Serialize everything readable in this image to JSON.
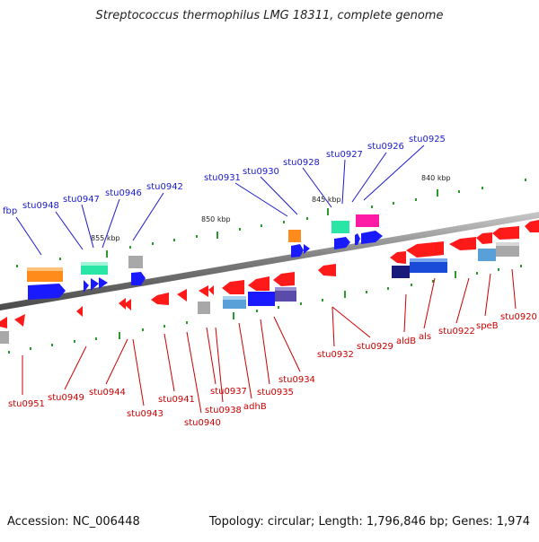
{
  "title": "Streptococcus thermophilus LMG 18311, complete genome",
  "footer": {
    "accession": "Accession: NC_006448",
    "summary": "Topology: circular; Length: 1,796,846 bp; Genes: 1,974"
  },
  "ticks": [
    "840 kbp",
    "845 kbp",
    "850 kbp",
    "855 kbp"
  ],
  "labels_top": [
    "fbp",
    "stu0948",
    "stu0947",
    "stu0946",
    "stu0942",
    "stu0931",
    "stu0930",
    "stu0928",
    "stu0927",
    "stu0926",
    "stu0925"
  ],
  "labels_bottom": [
    "stu0951",
    "stu0949",
    "stu0944",
    "stu0943",
    "stu0941",
    "stu0940",
    "stu0938",
    "stu0937",
    "adhB",
    "stu0935",
    "stu0934",
    "stu0932",
    "stu0929",
    "aldB",
    "als",
    "stu0922",
    "speB",
    "stu0920"
  ],
  "colors": {
    "forward_label": "#1a1acc",
    "reverse_label": "#cc0000",
    "backbone": "#808080",
    "tick": "#2a9a2a"
  }
}
